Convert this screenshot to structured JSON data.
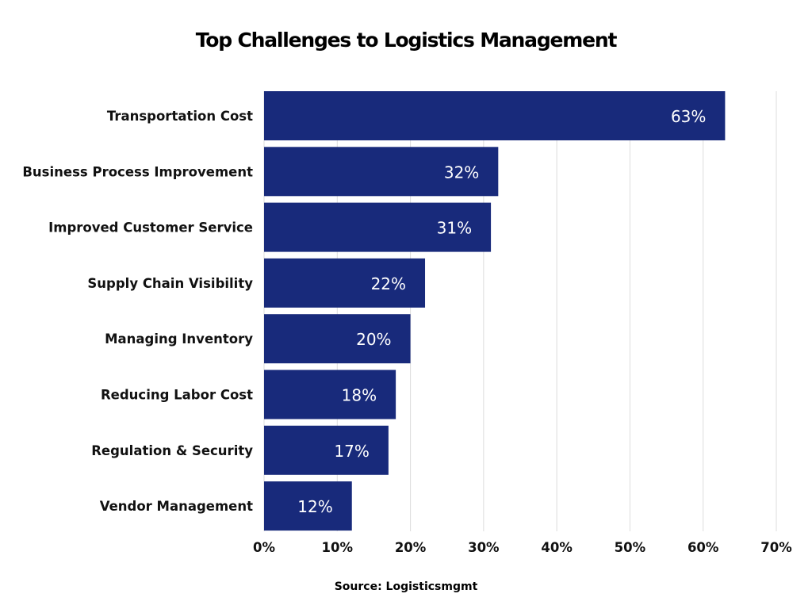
{
  "chart_data": {
    "type": "bar",
    "orientation": "horizontal",
    "title": "Top Challenges to Logistics Management",
    "source": "Source: Logisticsmgmt",
    "categories": [
      "Transportation Cost",
      "Business Process Improvement",
      "Improved Customer Service",
      "Supply Chain Visibility",
      "Managing Inventory",
      "Reducing Labor Cost",
      "Regulation & Security",
      "Vendor Management"
    ],
    "values": [
      63,
      32,
      31,
      22,
      20,
      18,
      17,
      12
    ],
    "data_labels": [
      "63%",
      "32%",
      "31%",
      "22%",
      "20%",
      "18%",
      "17%",
      "12%"
    ],
    "xlim": [
      0,
      70
    ],
    "xticks": [
      0,
      10,
      20,
      30,
      40,
      50,
      60,
      70
    ],
    "xtick_labels": [
      "0%",
      "10%",
      "20%",
      "30%",
      "40%",
      "50%",
      "60%",
      "70%"
    ],
    "grid": "vertical",
    "bar_color": "#182a7b",
    "grid_color": "#dddddd"
  }
}
